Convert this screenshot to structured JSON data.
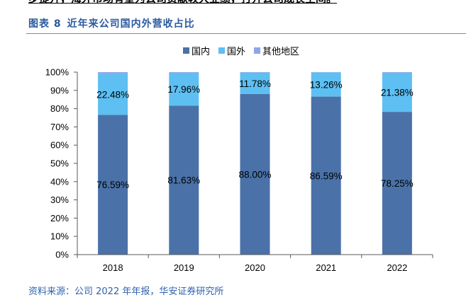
{
  "lead_text": "步提升，海外市场有望为公司贡献较大业绩，打开公司成长空间。",
  "figure": {
    "label": "图表 8",
    "title": "近年来公司国内外营收占比"
  },
  "source": "资料来源：公司 2022 年年报，华安证券研究所",
  "colors": {
    "title": "#2a5aa0",
    "source": "#2f62ad",
    "axis": "#595959"
  },
  "chart_data": {
    "type": "bar",
    "stacked": true,
    "categories": [
      "2018",
      "2019",
      "2020",
      "2021",
      "2022"
    ],
    "series": [
      {
        "name": "国内",
        "color": "#4a72a8",
        "values": [
          76.59,
          81.63,
          88.0,
          86.59,
          78.25
        ],
        "labels": [
          "76.59%",
          "81.63%",
          "88.00%",
          "86.59%",
          "78.25%"
        ]
      },
      {
        "name": "国外",
        "color": "#5dbff2",
        "values": [
          22.48,
          17.96,
          11.78,
          13.26,
          21.38
        ],
        "labels": [
          "22.48%",
          "17.96%",
          "11.78%",
          "13.26%",
          "21.38%"
        ]
      },
      {
        "name": "其他地区",
        "color": "#8ea6e8",
        "values": [
          0.93,
          0.41,
          0.22,
          0.15,
          0.37
        ]
      }
    ],
    "ylim": [
      0,
      100
    ],
    "yticks": [
      "0%",
      "10%",
      "20%",
      "30%",
      "40%",
      "50%",
      "60%",
      "70%",
      "80%",
      "90%",
      "100%"
    ],
    "grid": false,
    "legend": "top-center"
  }
}
